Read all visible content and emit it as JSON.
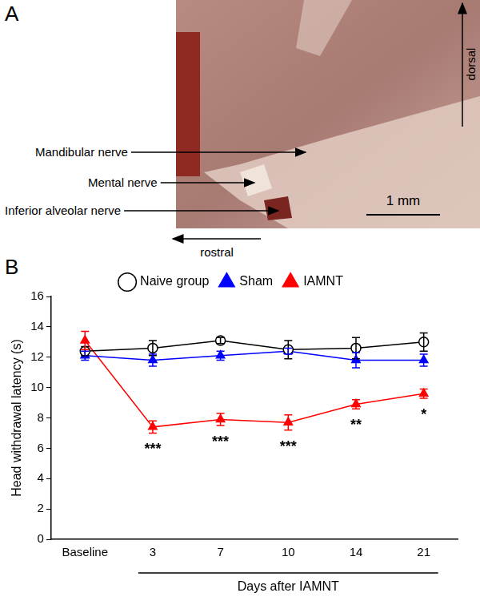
{
  "panel_a": {
    "label": "A",
    "nerve_labels": [
      "Mandibular nerve",
      "Mental nerve",
      "Inferior alveolar nerve"
    ],
    "scale_bar": "1 mm",
    "direction_labels": {
      "vertical": "dorsal",
      "horizontal": "rostral"
    }
  },
  "chart_data": {
    "panel_label": "B",
    "type": "line",
    "categories": [
      "Baseline",
      "3",
      "7",
      "10",
      "14",
      "21"
    ],
    "x_label": "Days after IAMNT",
    "y_label": "Head withdrawal latency (s)",
    "ylim": [
      0,
      16
    ],
    "yticks": [
      0,
      2,
      4,
      6,
      8,
      10,
      12,
      14,
      16
    ],
    "grid": false,
    "legend": "top",
    "series": [
      {
        "name": "Naive group",
        "color": "#000000",
        "marker": "open_circle",
        "values": [
          12.4,
          12.6,
          13.1,
          12.5,
          12.6,
          13.0
        ],
        "errors": [
          0.3,
          0.5,
          0.2,
          0.6,
          0.7,
          0.6
        ]
      },
      {
        "name": "Sham",
        "color": "#0000ff",
        "marker": "triangle",
        "values": [
          12.1,
          11.8,
          12.1,
          12.4,
          11.8,
          11.8
        ],
        "errors": [
          0.3,
          0.4,
          0.3,
          0.2,
          0.5,
          0.4
        ]
      },
      {
        "name": "IAMNT",
        "color": "#ff0000",
        "marker": "triangle",
        "values": [
          13.1,
          7.4,
          7.9,
          7.7,
          8.9,
          9.6
        ],
        "errors": [
          0.6,
          0.4,
          0.4,
          0.5,
          0.3,
          0.3
        ],
        "significance": [
          null,
          "***",
          "***",
          "***",
          "**",
          "*"
        ]
      }
    ]
  }
}
